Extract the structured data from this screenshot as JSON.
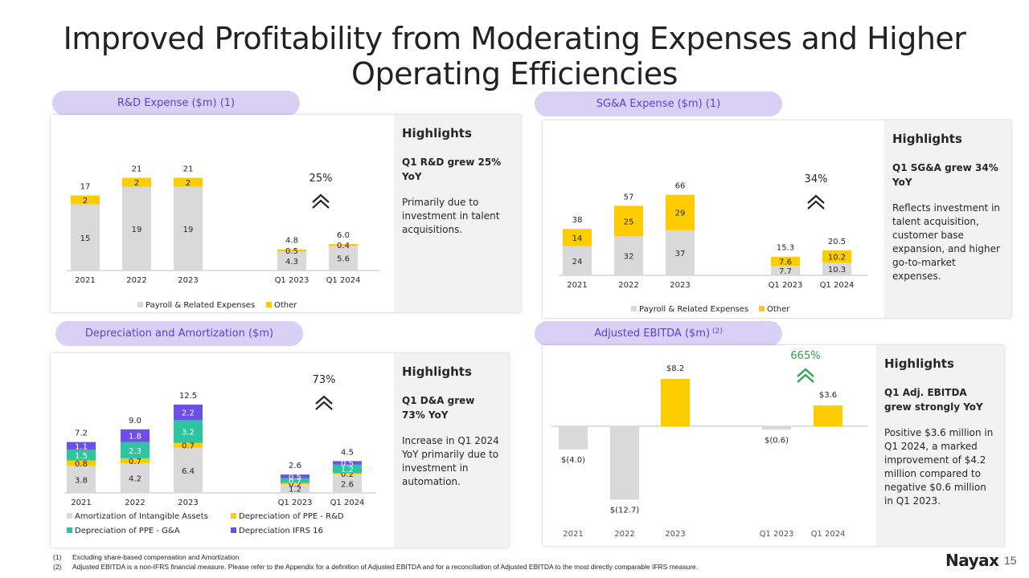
{
  "title": "Improved Profitability from Moderating Expenses and Higher Operating Efficiencies",
  "pills": {
    "rd": "R&D Expense ($m) (1)",
    "sga": "SG&A Expense ($m) (1)",
    "da": "Depreciation and Amortization ($m)",
    "ebitda": "Adjusted EBITDA ($m)",
    "ebitda_sup": "(2)"
  },
  "highlights": {
    "rd": {
      "heading": "Highlights",
      "sub": "Q1 R&D grew 25% YoY",
      "body": "Primarily due to investment in talent acquisitions."
    },
    "sga": {
      "heading": "Highlights",
      "sub": "Q1 SG&A grew 34% YoY",
      "body": "Reflects investment in talent acquisition, customer base expansion, and higher go-to-market expenses."
    },
    "da": {
      "heading": "Highlights",
      "sub": "Q1 D&A grew 73% YoY",
      "body": "Increase in Q1 2024 YoY primarily due to investment in automation."
    },
    "ebitda": {
      "heading": "Highlights",
      "sub": "Q1 Adj. EBITDA grew strongly YoY",
      "body": "Positive $3.6 million in Q1 2024,  a marked improvement of $4.2 million compared to negative $0.6 million in Q1 2023."
    }
  },
  "footnotes": [
    {
      "num": "(1)",
      "text": "Excluding share-based compensation and Amortization"
    },
    {
      "num": "(2)",
      "text": "Adjusted  EBITDA is a non-IFRS financial measure. Please refer to the Appendix for a definition of Adjusted EBITDA and for a reconciliation of Adjusted EBITDA to the most directly comparable IFRS measure."
    }
  ],
  "logo": "Nayax",
  "page_number": "15",
  "colors": {
    "gray": "#d9d9d9",
    "yellow": "#ffcc00",
    "teal": "#2ec4a0",
    "purple": "#6b4fe8",
    "accent": "#5b3fd3",
    "green": "#2aa14a"
  },
  "chart_data": [
    {
      "id": "rd",
      "type": "bar",
      "stacked": true,
      "categories": [
        "2021",
        "2022",
        "2023",
        "Q1 2023",
        "Q1 2024"
      ],
      "series": [
        {
          "name": "Payroll & Related Expenses",
          "color": "#d9d9d9",
          "values": [
            15,
            19,
            19,
            4.3,
            5.6
          ],
          "labels": [
            "15",
            "19",
            "19",
            "4.3",
            "5.6"
          ]
        },
        {
          "name": "Other",
          "color": "#ffcc00",
          "values": [
            2,
            2,
            2,
            0.5,
            0.4
          ],
          "labels": [
            "2",
            "2",
            "2",
            "0.5",
            "0.4"
          ]
        }
      ],
      "totals": [
        "17",
        "21",
        "21",
        "4.8",
        "6.0"
      ],
      "growth": "25%",
      "legend_position": "bottom"
    },
    {
      "id": "sga",
      "type": "bar",
      "stacked": true,
      "categories": [
        "2021",
        "2022",
        "2023",
        "Q1 2023",
        "Q1 2024"
      ],
      "series": [
        {
          "name": "Payroll & Related Expenses",
          "color": "#d9d9d9",
          "values": [
            24,
            32,
            37,
            7.7,
            10.3
          ],
          "labels": [
            "24",
            "32",
            "37",
            "7.7",
            "10.3"
          ]
        },
        {
          "name": "Other",
          "color": "#ffcc00",
          "values": [
            14,
            25,
            29,
            7.6,
            10.2
          ],
          "labels": [
            "14",
            "25",
            "29",
            "7.6",
            "10.2"
          ]
        }
      ],
      "totals": [
        "38",
        "57",
        "66",
        "15.3",
        "20.5"
      ],
      "growth": "34%",
      "legend_position": "bottom"
    },
    {
      "id": "da",
      "type": "bar",
      "stacked": true,
      "categories": [
        "2021",
        "2022",
        "2023",
        "Q1 2023",
        "Q1 2024"
      ],
      "series": [
        {
          "name": "Amortization of Intangible Assets",
          "color": "#d9d9d9",
          "values": [
            3.8,
            4.2,
            6.4,
            1.2,
            2.6
          ],
          "labels": [
            "3.8",
            "4.2",
            "6.4",
            "1.2",
            "2.6"
          ]
        },
        {
          "name": "Depreciation of PPE - R&D",
          "color": "#ffcc00",
          "values": [
            0.8,
            0.7,
            0.7,
            0.2,
            0.2
          ],
          "labels": [
            "0.8",
            "0.7",
            "0.7",
            "0.2",
            "0.2"
          ]
        },
        {
          "name": "Depreciation of PPE - G&A",
          "color": "#2ec4a0",
          "values": [
            1.5,
            2.3,
            3.2,
            0.7,
            1.2
          ],
          "labels": [
            "1.5",
            "2.3",
            "3.2",
            "0.7",
            "1.2"
          ]
        },
        {
          "name": "Depreciation IFRS 16",
          "color": "#6b4fe8",
          "values": [
            1.1,
            1.8,
            2.2,
            0.5,
            0.5
          ],
          "labels": [
            "1.1",
            "1.8",
            "2.2",
            "0.5",
            "0.5"
          ]
        }
      ],
      "totals": [
        "7.2",
        "9.0",
        "12.5",
        "2.6",
        "4.5"
      ],
      "growth": "73%",
      "legend_position": "bottom"
    },
    {
      "id": "ebitda",
      "type": "bar",
      "stacked": false,
      "categories": [
        "2021",
        "2022",
        "2023",
        "Q1 2023",
        "Q1 2024"
      ],
      "series": [
        {
          "name": "",
          "values": [
            -4.0,
            -12.7,
            8.2,
            -0.6,
            3.6
          ],
          "labels": [
            "$(4.0)",
            "$(12.7)",
            "$8.2",
            "$(0.6)",
            "$3.6"
          ]
        }
      ],
      "growth": "665%"
    }
  ]
}
